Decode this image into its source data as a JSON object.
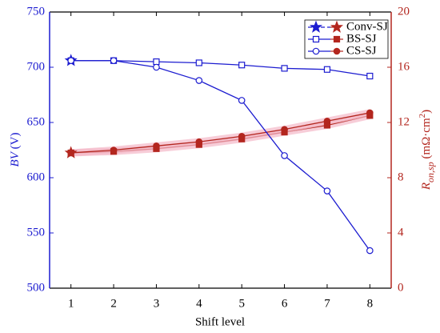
{
  "chart_data": {
    "type": "line",
    "xlabel": "Shift level",
    "ylabel": [
      "BV",
      " (V)"
    ],
    "y2label": [
      "R",
      "on,sp",
      " (mΩ·cm",
      "2",
      ")"
    ],
    "x": [
      1,
      2,
      3,
      4,
      5,
      6,
      7,
      8
    ],
    "xlim": [
      0.5,
      8.5
    ],
    "xticks": [
      1,
      2,
      3,
      4,
      5,
      6,
      7,
      8
    ],
    "ylim": [
      500,
      750
    ],
    "yticks": [
      500,
      550,
      600,
      650,
      700,
      750
    ],
    "y2lim": [
      0,
      20
    ],
    "y2ticks": [
      0,
      4,
      8,
      12,
      16,
      20
    ],
    "bv_color": "#1c1cd0",
    "ron_color": "#b3261e",
    "legend": "upper right",
    "series": [
      {
        "name": "Conv-SJ",
        "marker": "star",
        "dashed": true,
        "bv": [
          706,
          null,
          null,
          null,
          null,
          null,
          null,
          null
        ],
        "ron": [
          9.8,
          null,
          null,
          null,
          null,
          null,
          null,
          null
        ]
      },
      {
        "name": "BS-SJ",
        "marker": "square",
        "dashed": false,
        "bv": [
          706,
          706,
          705,
          704,
          702,
          699,
          698,
          692
        ],
        "ron": [
          9.8,
          9.9,
          10.1,
          10.4,
          10.8,
          11.3,
          11.8,
          12.5
        ]
      },
      {
        "name": "CS-SJ",
        "marker": "circle",
        "dashed": false,
        "bv": [
          706,
          706,
          700,
          688,
          670,
          620,
          588,
          534
        ],
        "ron": [
          9.8,
          10.0,
          10.3,
          10.6,
          11.0,
          11.5,
          12.1,
          12.7
        ]
      }
    ]
  }
}
